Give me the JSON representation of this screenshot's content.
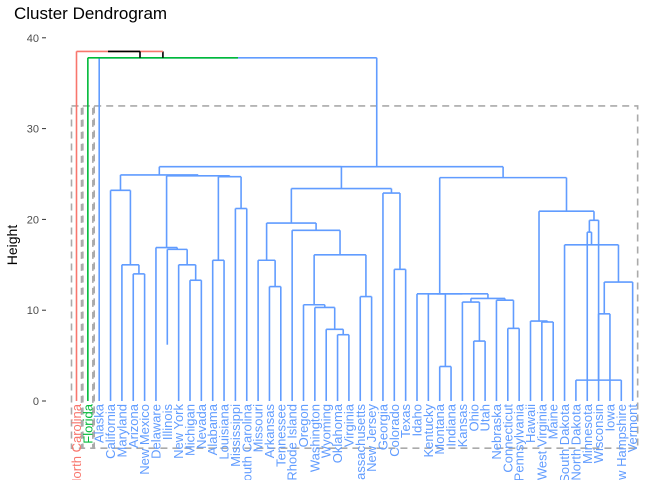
{
  "chart_data": {
    "type": "dendrogram",
    "title": "Cluster Dendrogram",
    "xlabel": "",
    "ylabel": "Height",
    "ylim": [
      -3,
      40.5
    ],
    "yticks": [
      0,
      10,
      20,
      30,
      40
    ],
    "grid": false,
    "legend": "none",
    "colors": {
      "cluster1": "#F8766D",
      "cluster2": "#00BA38",
      "cluster3": "#619CFF",
      "root": "#000000",
      "rect": "#AAAAAA"
    },
    "clusters": [
      {
        "name": "cluster1",
        "color": "#F8766D",
        "members": [
          "North Carolina"
        ]
      },
      {
        "name": "cluster2",
        "color": "#00BA38",
        "members": [
          "Florida"
        ]
      },
      {
        "name": "cluster3",
        "color": "#619CFF",
        "members": [
          "Alaska",
          "California",
          "Maryland",
          "Arizona",
          "New Mexico",
          "Delaware",
          "Illinois",
          "New York",
          "Michigan",
          "Nevada",
          "Alabama",
          "Louisiana",
          "Mississippi",
          "South Carolina",
          "Missouri",
          "Arkansas",
          "Tennessee",
          "Rhode Island",
          "Oregon",
          "Washington",
          "Wyoming",
          "Oklahoma",
          "Virginia",
          "Massachusetts",
          "New Jersey",
          "Georgia",
          "Colorado",
          "Texas",
          "Idaho",
          "Kentucky",
          "Montana",
          "Indiana",
          "Kansas",
          "Ohio",
          "Utah",
          "Nebraska",
          "Connecticut",
          "Pennsylvania",
          "Hawaii",
          "West Virginia",
          "Maine",
          "South Dakota",
          "North Dakota",
          "Minnesota",
          "Wisconsin",
          "Iowa",
          "New Hampshire",
          "Vermont"
        ]
      }
    ],
    "cut_boxes": [
      {
        "cluster": "cluster1",
        "top": 32.5
      },
      {
        "cluster": "cluster2",
        "top": 32.5
      },
      {
        "cluster": "cluster3",
        "top": 32.5
      }
    ],
    "leaves": [
      {
        "label": "North Carolina",
        "cluster": "cluster1"
      },
      {
        "label": "Florida",
        "cluster": "cluster2"
      },
      {
        "label": "Alaska",
        "cluster": "cluster3"
      },
      {
        "label": "California",
        "cluster": "cluster3"
      },
      {
        "label": "Maryland",
        "cluster": "cluster3"
      },
      {
        "label": "Arizona",
        "cluster": "cluster3"
      },
      {
        "label": "New Mexico",
        "cluster": "cluster3"
      },
      {
        "label": "Delaware",
        "cluster": "cluster3"
      },
      {
        "label": "Illinois",
        "cluster": "cluster3"
      },
      {
        "label": "New York",
        "cluster": "cluster3"
      },
      {
        "label": "Michigan",
        "cluster": "cluster3"
      },
      {
        "label": "Nevada",
        "cluster": "cluster3"
      },
      {
        "label": "Alabama",
        "cluster": "cluster3"
      },
      {
        "label": "Louisiana",
        "cluster": "cluster3"
      },
      {
        "label": "Mississippi",
        "cluster": "cluster3"
      },
      {
        "label": "South Carolina",
        "cluster": "cluster3"
      },
      {
        "label": "Missouri",
        "cluster": "cluster3"
      },
      {
        "label": "Arkansas",
        "cluster": "cluster3"
      },
      {
        "label": "Tennessee",
        "cluster": "cluster3"
      },
      {
        "label": "Rhode Island",
        "cluster": "cluster3"
      },
      {
        "label": "Oregon",
        "cluster": "cluster3"
      },
      {
        "label": "Washington",
        "cluster": "cluster3"
      },
      {
        "label": "Wyoming",
        "cluster": "cluster3"
      },
      {
        "label": "Oklahoma",
        "cluster": "cluster3"
      },
      {
        "label": "Virginia",
        "cluster": "cluster3"
      },
      {
        "label": "Massachusetts",
        "cluster": "cluster3"
      },
      {
        "label": "New Jersey",
        "cluster": "cluster3"
      },
      {
        "label": "Georgia",
        "cluster": "cluster3"
      },
      {
        "label": "Colorado",
        "cluster": "cluster3"
      },
      {
        "label": "Texas",
        "cluster": "cluster3"
      },
      {
        "label": "Idaho",
        "cluster": "cluster3"
      },
      {
        "label": "Kentucky",
        "cluster": "cluster3"
      },
      {
        "label": "Montana",
        "cluster": "cluster3"
      },
      {
        "label": "Indiana",
        "cluster": "cluster3"
      },
      {
        "label": "Kansas",
        "cluster": "cluster3"
      },
      {
        "label": "Ohio",
        "cluster": "cluster3"
      },
      {
        "label": "Utah",
        "cluster": "cluster3"
      },
      {
        "label": "Nebraska",
        "cluster": "cluster3"
      },
      {
        "label": "Connecticut",
        "cluster": "cluster3"
      },
      {
        "label": "Pennsylvania",
        "cluster": "cluster3"
      },
      {
        "label": "Hawaii",
        "cluster": "cluster3"
      },
      {
        "label": "West Virginia",
        "cluster": "cluster3"
      },
      {
        "label": "Maine",
        "cluster": "cluster3"
      },
      {
        "label": "South Dakota",
        "cluster": "cluster3"
      },
      {
        "label": "North Dakota",
        "cluster": "cluster3"
      },
      {
        "label": "Minnesota",
        "cluster": "cluster3"
      },
      {
        "label": "Wisconsin",
        "cluster": "cluster3"
      },
      {
        "label": "Iowa",
        "cluster": "cluster3"
      },
      {
        "label": "New Hampshire",
        "cluster": "cluster3"
      },
      {
        "label": "Vermont",
        "cluster": "cluster3"
      }
    ],
    "merges": [
      {
        "left": "Arizona",
        "right": "New Mexico",
        "height": 14.0
      },
      {
        "left": "Maryland",
        "right": "m1",
        "height": 15.0
      },
      {
        "left": "California",
        "right": "m2",
        "height": 23.2
      },
      {
        "left": "Michigan",
        "right": "Nevada",
        "height": 13.3
      },
      {
        "left": "New York",
        "right": "m4",
        "height": 15.0
      },
      {
        "left": "Illinois",
        "right": "m5",
        "height": 6.2
      },
      {
        "left": "m6",
        "right": "m5b",
        "height": 16.7
      },
      {
        "left": "Delaware",
        "right": "m7",
        "height": 16.9
      },
      {
        "left": "Alabama",
        "right": "Louisiana",
        "height": 15.5
      },
      {
        "left": "Mississippi",
        "right": "South Carolina",
        "height": 21.2
      },
      {
        "left": "m9",
        "right": "m10",
        "height": 24.7
      },
      {
        "left": "m8",
        "right": "m11",
        "height": 24.8
      },
      {
        "left": "m3",
        "right": "m12",
        "height": 24.9
      },
      {
        "left": "Arkansas",
        "right": "Tennessee",
        "height": 12.6
      },
      {
        "left": "Missouri",
        "right": "m14",
        "height": 15.5
      },
      {
        "left": "Wyoming",
        "right": "Oklahoma",
        "height": 7.9
      },
      {
        "left": "Wyoming",
        "right": "Virginia",
        "height": 7.3
      },
      {
        "left": "Washington",
        "right": "m16",
        "height": 10.3
      },
      {
        "left": "Oregon",
        "right": "m18",
        "height": 10.6
      },
      {
        "left": "Massachusetts",
        "right": "New Jersey",
        "height": 11.5
      },
      {
        "left": "m19b",
        "right": "m20",
        "height": 16.1
      },
      {
        "left": "Rhode Island",
        "right": "m21",
        "height": 18.8
      },
      {
        "left": "m15",
        "right": "m22",
        "height": 19.6
      },
      {
        "left": "Colorado",
        "right": "Texas",
        "height": 14.5
      },
      {
        "left": "Georgia",
        "right": "m24",
        "height": 22.9
      },
      {
        "left": "m23",
        "right": "m25",
        "height": 23.4
      },
      {
        "left": "m13",
        "right": "m26",
        "height": 25.8
      },
      {
        "left": "Montana",
        "right": "Indiana",
        "height": 3.8
      },
      {
        "left": "Ohio",
        "right": "Utah",
        "height": 4.0
      },
      {
        "left": "Utah",
        "right": "Nebraska",
        "height": 6.6
      },
      {
        "left": "Kansas",
        "right": "m30",
        "height": 10.9
      },
      {
        "left": "m31",
        "right": "m32",
        "height": 11.3
      },
      {
        "left": "Connecticut",
        "right": "Pennsylvania",
        "height": 8.0
      },
      {
        "left": "m33",
        "right": "m34",
        "height": 11.1
      },
      {
        "left": "Kentucky",
        "right": "m35",
        "height": 11.8
      },
      {
        "left": "Idaho",
        "right": "m36",
        "height": 11.8
      },
      {
        "left": "West Virginia",
        "right": "Maine",
        "height": 8.7
      },
      {
        "left": "Hawaii",
        "right": "m38",
        "height": 8.8
      },
      {
        "left": "New Hampshire",
        "right": "North Dakota",
        "height": 2.3
      },
      {
        "left": "Iowa",
        "right": "m40",
        "height": 9.6
      },
      {
        "left": "m41",
        "right": "Vermont",
        "height": 13.1
      },
      {
        "left": "m42b",
        "right": "m42",
        "height": 17.2
      },
      {
        "left": "Minnesota",
        "right": "m43",
        "height": 18.6
      },
      {
        "left": "South Dakota",
        "right": "m44",
        "height": 19.9
      },
      {
        "left": "m39",
        "right": "m45",
        "height": 20.9
      },
      {
        "left": "m37",
        "right": "m46",
        "height": 24.6
      },
      {
        "left": "m27",
        "right": "m47",
        "height": 25.8
      },
      {
        "left": "Alaska",
        "right": "m48",
        "height": 37.8
      },
      {
        "left": "Florida",
        "right": "m49",
        "height": 37.8
      },
      {
        "left": "North Carolina",
        "right": "m50",
        "height": 38.5
      }
    ]
  }
}
